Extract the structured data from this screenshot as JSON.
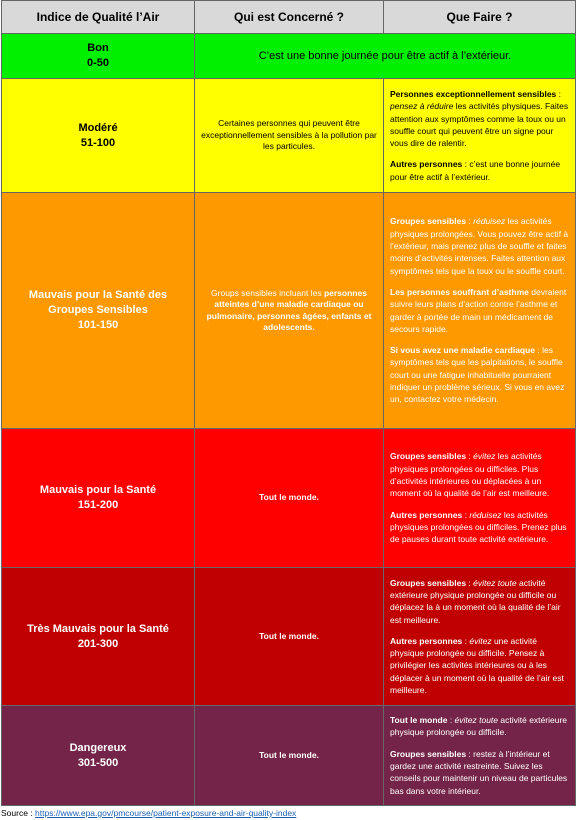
{
  "header": {
    "col1": "Indice de Qualité l’Air",
    "col2": "Qui est Concerné ?",
    "col3": "Que Faire ?"
  },
  "rows": [
    {
      "level": "Bon",
      "range": "0-50",
      "what": [
        [
          "C’est une bonne journée pour être actif à l’extérieur."
        ]
      ]
    },
    {
      "level": "Modéré",
      "range": "51-100",
      "who": [
        "Certaines personnes qui peuvent être exceptionnellement sensibles à la pollution par les particules."
      ],
      "what": [
        [
          "Personnes exceptionnellement sensibles",
          " : ",
          "pensez à réduire",
          " les activités physiques. Faites attention aux symptômes comme la toux ou un souffle court qui peuvent être un signe pour vous dire de ralentir."
        ],
        [
          "Autres personnes",
          " : c’est une bonne journée pour être actif à l’extérieur."
        ]
      ]
    },
    {
      "level": "Mauvais pour la Santé des Groupes Sensibles",
      "range": "101-150",
      "who": [
        "Groups sensibles incluant les ",
        "personnes atteintes d’une maladie cardiaque ou pulmonaire, personnes âgées, enfants et adolescents."
      ],
      "what": [
        [
          "Groupes sensibles",
          " : ",
          "réduisez",
          " les activités physiques prolongées. Vous pouvez être actif à l’extérieur, mais prenez plus de souffle et faites moins d’activités intenses. Faites attention aux symptômes tels que la toux ou le souffle court."
        ],
        [
          "Les personnes souffrant d’asthme",
          " devraient suivre leurs plans d’action contre l’asthme et garder à portée de main un médicament de secours rapide."
        ],
        [
          "Si vous avez une maladie cardiaque",
          " : les symptômes tels que les palpitations, le souffle court ou une fatigue inhabituelle pourraient indiquer un problème sérieux. Si vous en avez un, contactez votre médecin."
        ]
      ]
    },
    {
      "level": "Mauvais pour la Santé",
      "range": "151-200",
      "who": [
        "Tout le monde."
      ],
      "what": [
        [
          "Groupes sensibles",
          " : ",
          "évitez",
          " les activités physiques prolongées ou difficiles. Plus d’activités intérieures ou déplacées à un moment où la qualité de l’air est meilleure."
        ],
        [
          "Autres personnes",
          " : ",
          "réduisez",
          " les activités physiques prolongées ou difficiles. Prenez plus de pauses durant toute activité extérieure."
        ]
      ]
    },
    {
      "level": "Très Mauvais pour la Santé",
      "range": "201-300",
      "who": [
        "Tout le monde."
      ],
      "what": [
        [
          "Groupes sensibles",
          " : ",
          "évitez toute",
          " activité extérieure physique prolongée ou difficile ou déplacez la à un moment où la qualité de l’air est meilleure."
        ],
        [
          "Autres personnes",
          " : ",
          "évitez",
          " une activité physique prolongée ou difficile. Pensez à privilégier les activités intérieures ou à les déplacer à un moment où la qualité de l’air est meilleure."
        ]
      ]
    },
    {
      "level": "Dangereux",
      "range": "301-500",
      "who": [
        "Tout le monde."
      ],
      "what": [
        [
          "Tout le monde",
          " : ",
          "évitez toute",
          " activité extérieure physique prolongée ou difficile."
        ],
        [
          "Groupes sensibles",
          " : restez à l’intérieur et gardez une activité restreinte. Suivez les conseils pour maintenir un niveau de particules bas dans votre intérieur."
        ]
      ]
    }
  ],
  "source": {
    "label": "Source : ",
    "url": "https://www.epa.gov/pmcourse/patient-exposure-and-air-quality-index"
  }
}
